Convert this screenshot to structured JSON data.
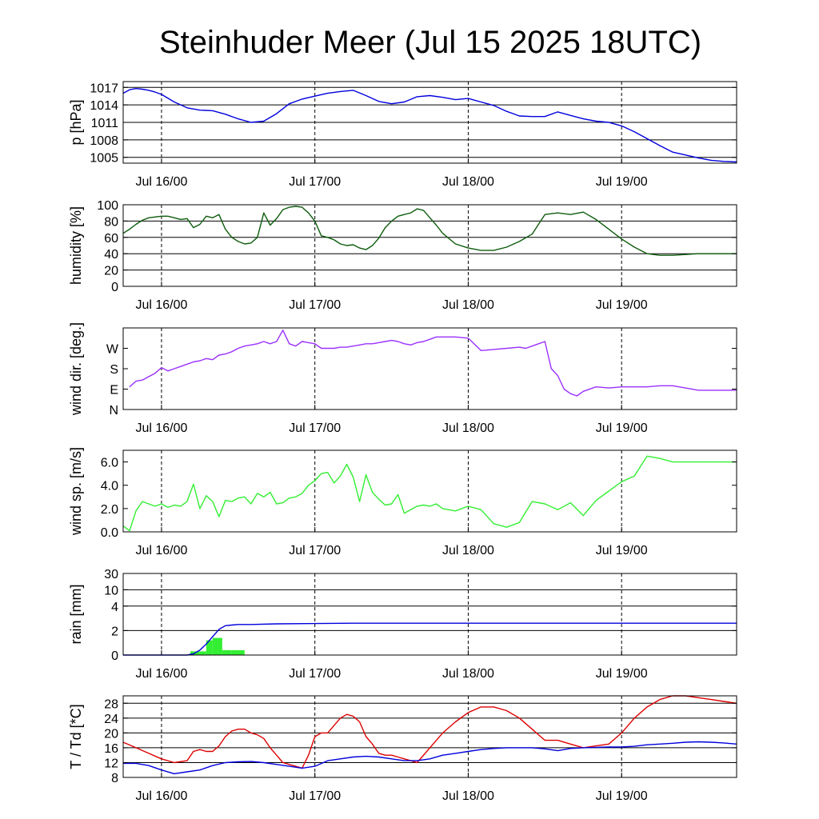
{
  "title": "Steinhuder Meer (Jul 15 2025 18UTC)",
  "x_tick_labels": [
    "Jul 16/00",
    "Jul 17/00",
    "Jul 18/00",
    "Jul 19/00"
  ],
  "x_range_hours": [
    0,
    96
  ],
  "chart_data": [
    {
      "type": "line",
      "ylabel": "p [hPa]",
      "ylim": [
        1004,
        1018
      ],
      "yticks": [
        1005,
        1008,
        1011,
        1014,
        1017
      ],
      "ytick_labels": [
        "1005",
        "1008",
        "1011",
        "1014",
        "1017"
      ],
      "grid": true,
      "series": [
        {
          "color": "#0000dd",
          "x": [
            0,
            1,
            2,
            3,
            4,
            5,
            6,
            8,
            10,
            12,
            14,
            16,
            18,
            20,
            22,
            24,
            26,
            28,
            30,
            32,
            34,
            36,
            38,
            40,
            42,
            44,
            46,
            48,
            50,
            52,
            54,
            56,
            58,
            60,
            62,
            64,
            66,
            68,
            70,
            72,
            74,
            76,
            78,
            80,
            82,
            84,
            86,
            88,
            90,
            92,
            94,
            96
          ],
          "y": [
            1016,
            1016.6,
            1016.8,
            1016.7,
            1016.5,
            1016.2,
            1015.8,
            1014.5,
            1013.5,
            1013.1,
            1013,
            1012.4,
            1011.6,
            1011,
            1011.2,
            1012.5,
            1014.2,
            1015,
            1015.5,
            1016,
            1016.3,
            1016.5,
            1015.6,
            1014.6,
            1014.2,
            1014.5,
            1015.4,
            1015.6,
            1015.3,
            1014.9,
            1015.1,
            1014.5,
            1013.9,
            1012.9,
            1012.1,
            1012,
            1012,
            1012.8,
            1012.2,
            1011.6,
            1011.2,
            1011,
            1010.4,
            1009.4,
            1008.2,
            1007,
            1005.9,
            1005.4,
            1004.9,
            1004.5,
            1004.3,
            1004.2
          ]
        }
      ]
    },
    {
      "type": "line",
      "ylabel": "humidity [%]",
      "ylim": [
        0,
        100
      ],
      "yticks": [
        0,
        20,
        40,
        60,
        80,
        100
      ],
      "ytick_labels": [
        "0",
        "20",
        "40",
        "60",
        "80",
        "100"
      ],
      "grid": true,
      "series": [
        {
          "color": "#0d5c0d",
          "x": [
            0,
            1,
            2,
            3,
            4,
            5,
            6,
            7,
            8,
            9,
            10,
            11,
            12,
            13,
            14,
            15,
            16,
            17,
            18,
            19,
            20,
            21,
            22,
            23,
            24,
            25,
            26,
            27,
            28,
            29,
            30,
            31,
            32,
            33,
            34,
            35,
            36,
            37,
            38,
            39,
            40,
            41,
            42,
            43,
            44,
            45,
            46,
            47,
            48,
            49,
            50,
            52,
            54,
            56,
            58,
            60,
            62,
            64,
            66,
            68,
            70,
            72,
            74,
            76,
            78,
            80,
            82,
            84,
            86,
            88,
            90,
            92,
            94,
            96
          ],
          "y": [
            65,
            70,
            76,
            81,
            84,
            85,
            86,
            86,
            84,
            82,
            83,
            72,
            76,
            86,
            84,
            88,
            70,
            60,
            55,
            52,
            53,
            60,
            90,
            75,
            83,
            94,
            97,
            98,
            97,
            90,
            80,
            62,
            60,
            57,
            52,
            50,
            51,
            47,
            45,
            50,
            59,
            72,
            80,
            86,
            88,
            90,
            95,
            93,
            84,
            75,
            65,
            52,
            47,
            44,
            44,
            48,
            55,
            64,
            88,
            90,
            88,
            91,
            82,
            70,
            58,
            48,
            40,
            38,
            38,
            39,
            40,
            40,
            40,
            40
          ]
        }
      ]
    },
    {
      "type": "line",
      "ylabel": "wind dir. [deg.]",
      "ylim": [
        0,
        360
      ],
      "yticks": [
        0,
        90,
        180,
        270
      ],
      "ytick_labels": [
        "N",
        "E",
        "S",
        "W"
      ],
      "grid": false,
      "series": [
        {
          "color": "#9b30ff",
          "x": [
            1,
            2,
            3,
            4,
            5,
            6,
            7,
            8,
            9,
            10,
            11,
            12,
            13,
            14,
            15,
            16,
            17,
            18,
            19,
            20,
            21,
            22,
            23,
            24,
            25,
            26,
            27,
            28,
            29,
            30,
            31,
            32,
            33,
            34,
            35,
            36,
            37,
            38,
            39,
            40,
            41,
            42,
            43,
            44,
            45,
            46,
            47,
            48,
            49,
            50,
            52,
            54,
            56,
            58,
            60,
            62,
            63,
            64,
            65,
            66,
            67,
            68,
            69,
            70,
            71,
            72,
            74,
            76,
            78,
            80,
            82,
            84,
            86,
            88,
            90,
            92,
            94,
            96
          ],
          "y": [
            100,
            125,
            130,
            145,
            160,
            185,
            170,
            180,
            190,
            200,
            210,
            215,
            225,
            220,
            240,
            245,
            255,
            270,
            280,
            285,
            290,
            300,
            290,
            300,
            350,
            290,
            280,
            300,
            295,
            290,
            270,
            270,
            270,
            275,
            275,
            280,
            285,
            290,
            290,
            295,
            300,
            305,
            300,
            290,
            285,
            295,
            300,
            310,
            320,
            320,
            320,
            315,
            260,
            265,
            270,
            275,
            270,
            280,
            290,
            300,
            180,
            150,
            90,
            70,
            60,
            80,
            100,
            95,
            100,
            100,
            100,
            105,
            105,
            95,
            85,
            85,
            85,
            85
          ]
        }
      ]
    },
    {
      "type": "line",
      "ylabel": "wind sp. [m/s]",
      "ylim": [
        0,
        7
      ],
      "yticks": [
        0,
        2,
        4,
        6
      ],
      "ytick_labels": [
        "0.0",
        "2.0",
        "4.0",
        "6.0"
      ],
      "grid": false,
      "series": [
        {
          "color": "#33ee33",
          "x": [
            0,
            1,
            2,
            3,
            4,
            5,
            6,
            7,
            8,
            9,
            10,
            11,
            12,
            13,
            14,
            15,
            16,
            17,
            18,
            19,
            20,
            21,
            22,
            23,
            24,
            25,
            26,
            27,
            28,
            29,
            30,
            31,
            32,
            33,
            34,
            35,
            36,
            37,
            38,
            39,
            40,
            41,
            42,
            43,
            44,
            45,
            46,
            47,
            48,
            49,
            50,
            52,
            54,
            56,
            58,
            60,
            62,
            64,
            66,
            68,
            70,
            72,
            74,
            76,
            78,
            80,
            82,
            84,
            86,
            88,
            90,
            92,
            94,
            96
          ],
          "y": [
            0.5,
            0.1,
            1.8,
            2.6,
            2.4,
            2.2,
            2.4,
            2.1,
            2.3,
            2.2,
            2.6,
            4.1,
            2.0,
            3.1,
            2.6,
            1.3,
            2.7,
            2.6,
            2.9,
            3.0,
            2.4,
            3.3,
            3.0,
            3.4,
            2.4,
            2.5,
            2.9,
            3.0,
            3.3,
            4.0,
            4.4,
            5.0,
            5.1,
            4.2,
            4.8,
            5.8,
            4.7,
            2.6,
            4.9,
            3.4,
            2.8,
            2.3,
            2.4,
            3.2,
            1.6,
            1.9,
            2.2,
            2.3,
            2.2,
            2.4,
            2.0,
            1.8,
            2.2,
            1.9,
            0.7,
            0.4,
            0.8,
            2.6,
            2.4,
            1.9,
            2.5,
            1.4,
            2.7,
            3.5,
            4.3,
            4.8,
            6.5,
            6.3,
            6.0,
            6.0,
            6.0,
            6.0,
            6.0,
            6.0
          ]
        }
      ]
    },
    {
      "type": "bar+line",
      "ylabel": "rain [mm]",
      "ytick_values": [
        0,
        2,
        4,
        10,
        30
      ],
      "ytick_labels": [
        "0",
        "2",
        "4",
        "10",
        "30"
      ],
      "grid": true,
      "bars": {
        "color": "#33ee33",
        "x_start": [
          10.5,
          12,
          13,
          14,
          15.5,
          17
        ],
        "x_end": [
          12,
          13,
          14,
          15.5,
          17,
          19
        ],
        "values": [
          0.3,
          0.3,
          1.2,
          1.4,
          0.4,
          0.4
        ]
      },
      "series": [
        {
          "color": "#0000dd",
          "x": [
            0,
            10,
            11,
            12,
            13,
            14,
            15,
            16,
            17,
            18,
            20,
            24,
            36,
            48,
            60,
            72,
            84,
            96
          ],
          "y": [
            0,
            0,
            0.1,
            0.4,
            0.9,
            1.5,
            2.1,
            2.4,
            2.45,
            2.5,
            2.5,
            2.55,
            2.6,
            2.6,
            2.6,
            2.6,
            2.6,
            2.6
          ]
        }
      ]
    },
    {
      "type": "line",
      "ylabel": "T / Td [*C]",
      "ylim": [
        8,
        30
      ],
      "yticks": [
        8,
        12,
        16,
        20,
        24,
        28
      ],
      "ytick_labels": [
        "8",
        "12",
        "16",
        "20",
        "24",
        "28"
      ],
      "grid": true,
      "series": [
        {
          "color": "#dd0000",
          "x": [
            0,
            2,
            4,
            6,
            8,
            10,
            11,
            12,
            13,
            14,
            15,
            16,
            17,
            18,
            19,
            20,
            21,
            22,
            23,
            24,
            25,
            26,
            27,
            28,
            29,
            30,
            31,
            32,
            33,
            34,
            35,
            36,
            37,
            38,
            39,
            40,
            41,
            42,
            43,
            44,
            45,
            46,
            48,
            50,
            52,
            54,
            56,
            58,
            60,
            62,
            64,
            66,
            68,
            70,
            72,
            74,
            76,
            78,
            80,
            82,
            84,
            86,
            88,
            90,
            92,
            94,
            96
          ],
          "y": [
            17.5,
            16,
            14.5,
            13,
            12,
            12.5,
            15,
            15.5,
            15,
            15,
            16.5,
            19,
            20.5,
            21,
            21,
            20,
            19.5,
            18.5,
            16,
            14,
            12,
            11.5,
            11,
            10.5,
            14,
            19,
            20,
            20,
            22,
            24,
            25,
            24.5,
            23,
            19,
            17,
            14.5,
            14,
            14,
            13.5,
            13,
            12.5,
            12,
            16,
            20,
            23,
            25.5,
            27,
            27,
            26,
            24,
            21,
            18,
            18,
            17,
            16,
            16.5,
            17,
            20,
            24,
            27,
            29,
            30,
            30,
            29.5,
            29,
            28.5,
            28
          ]
        },
        {
          "color": "#0000dd",
          "x": [
            0,
            2,
            4,
            6,
            8,
            10,
            12,
            14,
            16,
            18,
            20,
            22,
            24,
            26,
            28,
            30,
            32,
            34,
            36,
            38,
            40,
            42,
            44,
            46,
            48,
            50,
            52,
            54,
            56,
            58,
            60,
            62,
            64,
            66,
            68,
            70,
            72,
            74,
            76,
            78,
            80,
            82,
            84,
            86,
            88,
            90,
            92,
            94,
            96
          ],
          "y": [
            11.8,
            11.8,
            11.2,
            10,
            9,
            9.5,
            10,
            11.2,
            12,
            12.2,
            12.3,
            12,
            11.5,
            11,
            10.5,
            11,
            12.5,
            13,
            13.5,
            13.7,
            13.5,
            13,
            12.5,
            12.5,
            13,
            14,
            14.5,
            15,
            15.5,
            15.8,
            16,
            16,
            16,
            15.7,
            15.2,
            15.8,
            16,
            16.1,
            16.2,
            16.2,
            16.4,
            16.8,
            17,
            17.2,
            17.5,
            17.6,
            17.5,
            17.3,
            17
          ]
        }
      ]
    }
  ]
}
